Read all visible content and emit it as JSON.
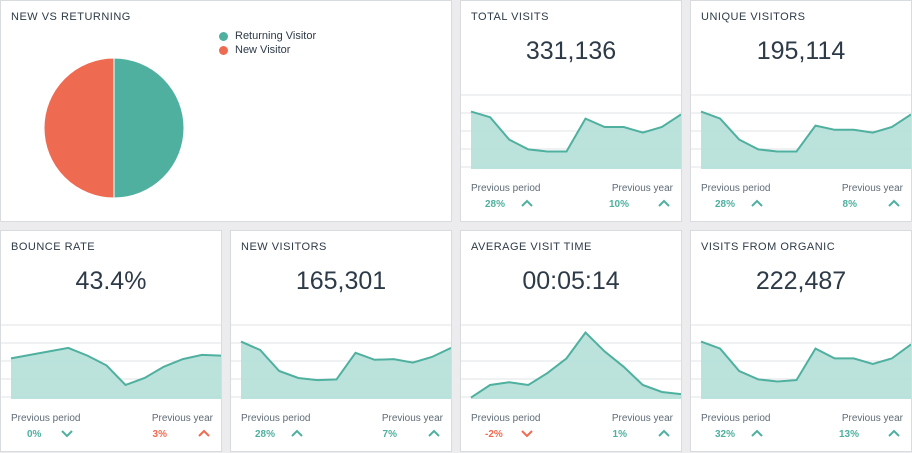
{
  "colors": {
    "teal": "#4fb09f",
    "area": "#b7e1da",
    "red": "#ee6b52",
    "grid": "#dfe3e6"
  },
  "pie_card": {
    "title": "NEW VS RETURNING",
    "legend": [
      {
        "label": "Returning Visitor",
        "color": "#4fb09f"
      },
      {
        "label": "New Visitor",
        "color": "#ee6b52"
      }
    ],
    "chart_data": {
      "type": "pie",
      "categories": [
        "Returning Visitor",
        "New Visitor"
      ],
      "values": [
        50,
        50
      ]
    }
  },
  "cards": [
    {
      "title": "TOTAL VISITS",
      "value": "331,136",
      "prev_label": "Previous period",
      "prev_pct": "28%",
      "prev_dir": "up",
      "year_label": "Previous year",
      "year_pct": "10%",
      "year_dir": "up",
      "spark": [
        0.82,
        0.74,
        0.42,
        0.28,
        0.25,
        0.25,
        0.72,
        0.6,
        0.6,
        0.52,
        0.6,
        0.78
      ]
    },
    {
      "title": "UNIQUE VISITORS",
      "value": "195,114",
      "prev_label": "Previous period",
      "prev_pct": "28%",
      "prev_dir": "up",
      "year_label": "Previous year",
      "year_pct": "8%",
      "year_dir": "up",
      "spark": [
        0.82,
        0.72,
        0.42,
        0.28,
        0.25,
        0.25,
        0.62,
        0.56,
        0.56,
        0.52,
        0.6,
        0.78
      ]
    },
    {
      "title": "BOUNCE RATE",
      "value": "43.4%",
      "prev_label": "Previous period",
      "prev_pct": "0%",
      "prev_dir": "down-teal",
      "year_label": "Previous year",
      "year_pct": "3%",
      "year_dir": "up-red",
      "spark": [
        0.58,
        0.63,
        0.68,
        0.73,
        0.62,
        0.48,
        0.2,
        0.3,
        0.46,
        0.57,
        0.63,
        0.62
      ]
    },
    {
      "title": "NEW VISITORS",
      "value": "165,301",
      "prev_label": "Previous period",
      "prev_pct": "28%",
      "prev_dir": "up",
      "year_label": "Previous year",
      "year_pct": "7%",
      "year_dir": "up",
      "spark": [
        0.82,
        0.7,
        0.4,
        0.3,
        0.27,
        0.28,
        0.66,
        0.56,
        0.57,
        0.52,
        0.6,
        0.73
      ]
    },
    {
      "title": "AVERAGE VISIT TIME",
      "value": "00:05:14",
      "prev_label": "Previous period",
      "prev_pct": "-2%",
      "prev_dir": "down",
      "year_label": "Previous year",
      "year_pct": "1%",
      "year_dir": "up",
      "spark": [
        0.02,
        0.2,
        0.24,
        0.2,
        0.37,
        0.58,
        0.95,
        0.68,
        0.46,
        0.2,
        0.1,
        0.07
      ]
    },
    {
      "title": "VISITS FROM ORGANIC",
      "value": "222,487",
      "prev_label": "Previous period",
      "prev_pct": "32%",
      "prev_dir": "up",
      "year_label": "Previous year",
      "year_pct": "13%",
      "year_dir": "up",
      "spark": [
        0.82,
        0.72,
        0.4,
        0.28,
        0.25,
        0.27,
        0.72,
        0.58,
        0.58,
        0.5,
        0.58,
        0.78
      ]
    }
  ]
}
